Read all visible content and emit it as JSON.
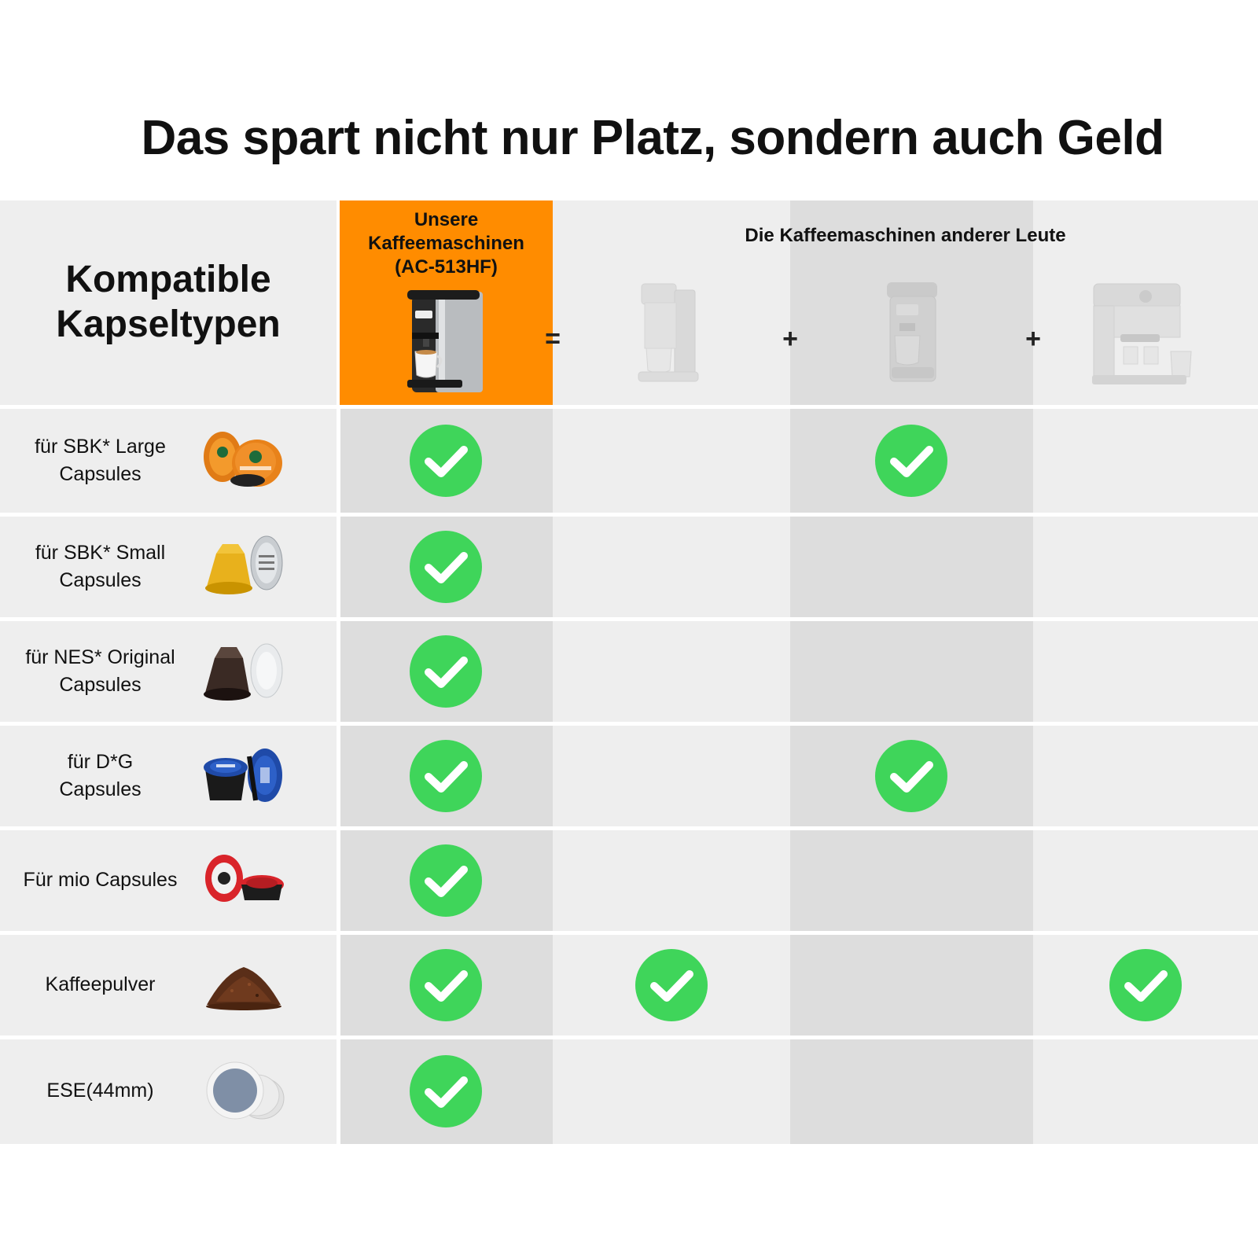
{
  "headline": "Das spart nicht nur Platz, sondern auch Geld",
  "header": {
    "label_line1": "Kompatible",
    "label_line2": "Kapseltypen",
    "ours_line1": "Unsere",
    "ours_line2": "Kaffeemaschinen",
    "ours_line3": "(AC-513HF)",
    "others_title": "Die Kaffeemaschinen anderer Leute",
    "op_equals": "=",
    "op_plus": "+"
  },
  "rows": [
    {
      "line1": "für SBK* Large",
      "line2": "Capsules",
      "icon": "starbucks-capsules-icon",
      "checks": [
        true,
        false,
        true,
        false
      ]
    },
    {
      "line1": "für SBK* Small",
      "line2": "Capsules",
      "icon": "small-capsules-icon",
      "checks": [
        true,
        false,
        false,
        false
      ]
    },
    {
      "line1": "für NES* Original",
      "line2": "Capsules",
      "icon": "nespresso-capsules-icon",
      "checks": [
        true,
        false,
        false,
        false
      ]
    },
    {
      "line1": "für D*G",
      "line2": "Capsules",
      "icon": "dolce-gusto-capsules-icon",
      "checks": [
        true,
        false,
        true,
        false
      ]
    },
    {
      "line1": "Für mio Capsules",
      "line2": "",
      "icon": "mio-capsules-icon",
      "checks": [
        true,
        false,
        false,
        false
      ]
    },
    {
      "line1": "Kaffeepulver",
      "line2": "",
      "icon": "coffee-powder-icon",
      "checks": [
        true,
        true,
        false,
        true
      ]
    },
    {
      "line1": "ESE(44mm)",
      "line2": "",
      "icon": "ese-pods-icon",
      "checks": [
        true,
        false,
        false,
        false
      ]
    }
  ],
  "colors": {
    "accent": "#ff8c00",
    "check": "#3fd55a",
    "light": "#eeeeee",
    "dark": "#dddddd"
  }
}
